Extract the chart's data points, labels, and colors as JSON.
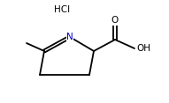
{
  "background": "#ffffff",
  "bond_color": "#000000",
  "text_color": "#000000",
  "N_color": "#0000cd",
  "O_color": "#cc4400",
  "HCl_text": "HCl",
  "N_text": "N",
  "O_text": "O",
  "H_text": "H",
  "figsize": [
    1.91,
    1.17
  ],
  "dpi": 100,
  "lw": 1.3
}
